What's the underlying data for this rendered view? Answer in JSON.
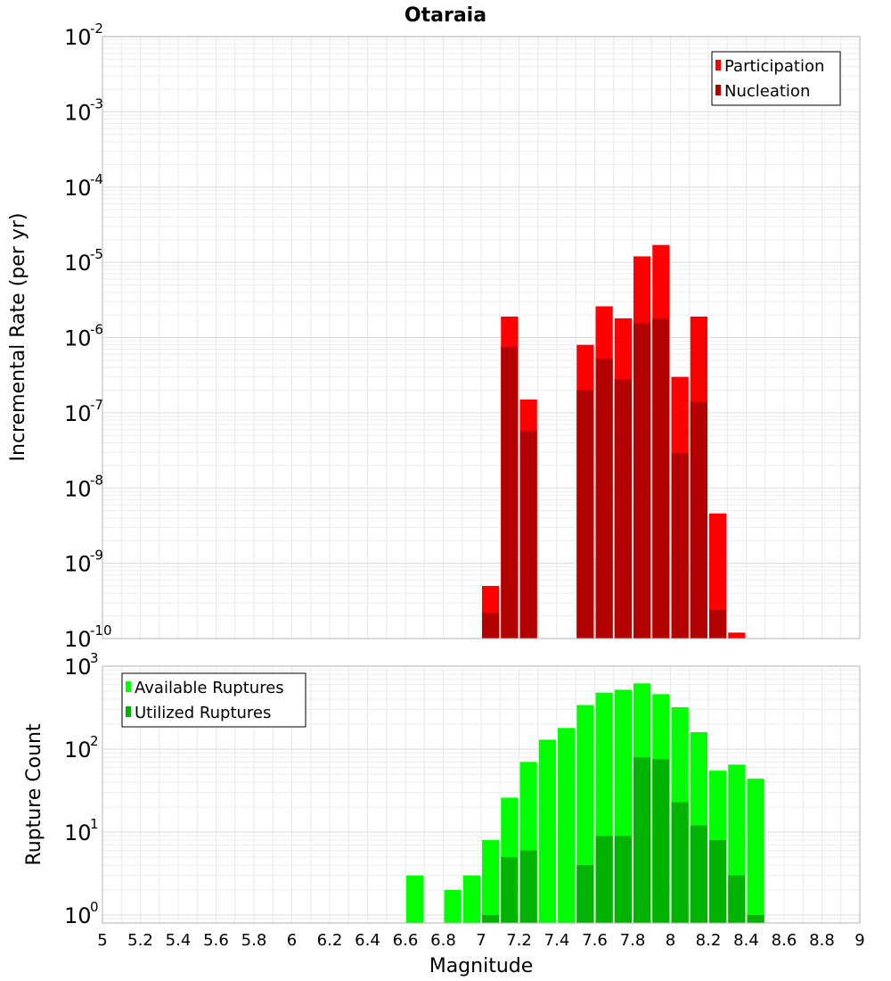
{
  "chart_data": [
    {
      "type": "bar",
      "title": "Otaraia",
      "xlabel": "",
      "ylabel": "Incremental Rate (per yr)",
      "y_scale": "log",
      "ylim": [
        1e-10,
        0.01
      ],
      "xlim": [
        5,
        9
      ],
      "bin_width": 0.1,
      "y_ticks": [
        {
          "base": "10",
          "exp": "-10"
        },
        {
          "base": "10",
          "exp": "-9"
        },
        {
          "base": "10",
          "exp": "-8"
        },
        {
          "base": "10",
          "exp": "-7"
        },
        {
          "base": "10",
          "exp": "-6"
        },
        {
          "base": "10",
          "exp": "-5"
        },
        {
          "base": "10",
          "exp": "-4"
        },
        {
          "base": "10",
          "exp": "-3"
        },
        {
          "base": "10",
          "exp": "-2"
        }
      ],
      "legend_position": "top-right",
      "grid": true,
      "series": [
        {
          "name": "Participation",
          "color": "#ff0000",
          "x": [
            7.05,
            7.15,
            7.25,
            7.55,
            7.65,
            7.75,
            7.85,
            7.95,
            8.05,
            8.15,
            8.25,
            8.35
          ],
          "values": [
            5e-10,
            1.9e-06,
            1.5e-07,
            8e-07,
            2.6e-06,
            1.8e-06,
            1.2e-05,
            1.7e-05,
            3e-07,
            1.9e-06,
            4.6e-09,
            1.2e-10
          ]
        },
        {
          "name": "Nucleation",
          "color": "#b30000",
          "x": [
            7.05,
            7.15,
            7.25,
            7.55,
            7.65,
            7.75,
            7.85,
            7.95,
            8.05,
            8.15,
            8.25
          ],
          "values": [
            2.2e-10,
            7.5e-07,
            5.8e-08,
            2e-07,
            5.2e-07,
            2.8e-07,
            1.55e-06,
            1.8e-06,
            2.9e-08,
            1.4e-07,
            2.4e-10
          ]
        }
      ]
    },
    {
      "type": "bar",
      "title": "",
      "xlabel": "Magnitude",
      "ylabel": "Rupture Count",
      "y_scale": "log",
      "ylim": [
        0.8,
        1000
      ],
      "xlim": [
        5,
        9
      ],
      "bin_width": 0.1,
      "y_ticks": [
        {
          "base": "10",
          "exp": "0"
        },
        {
          "base": "10",
          "exp": "1"
        },
        {
          "base": "10",
          "exp": "2"
        },
        {
          "base": "10",
          "exp": "3"
        }
      ],
      "x_tick_labels": [
        "5",
        "5.2",
        "5.4",
        "5.6",
        "5.8",
        "6",
        "6.2",
        "6.4",
        "6.6",
        "6.8",
        "7",
        "7.2",
        "7.4",
        "7.6",
        "7.8",
        "8",
        "8.2",
        "8.4",
        "8.6",
        "8.8",
        "9"
      ],
      "legend_position": "top-left",
      "grid": true,
      "series": [
        {
          "name": "Available Ruptures",
          "color": "#00ff00",
          "x": [
            6.65,
            6.85,
            6.95,
            7.05,
            7.15,
            7.25,
            7.35,
            7.45,
            7.55,
            7.65,
            7.75,
            7.85,
            7.95,
            8.05,
            8.15,
            8.25,
            8.35,
            8.45
          ],
          "values": [
            3,
            2,
            3,
            8,
            26,
            70,
            130,
            180,
            340,
            480,
            520,
            620,
            460,
            320,
            160,
            55,
            65,
            44
          ]
        },
        {
          "name": "Utilized Ruptures",
          "color": "#00b300",
          "x": [
            7.05,
            7.15,
            7.25,
            7.55,
            7.65,
            7.75,
            7.85,
            7.95,
            8.05,
            8.15,
            8.25,
            8.35,
            8.45
          ],
          "values": [
            1,
            5,
            6,
            4,
            9,
            9,
            80,
            76,
            23,
            12,
            8,
            3,
            1
          ]
        }
      ]
    }
  ]
}
